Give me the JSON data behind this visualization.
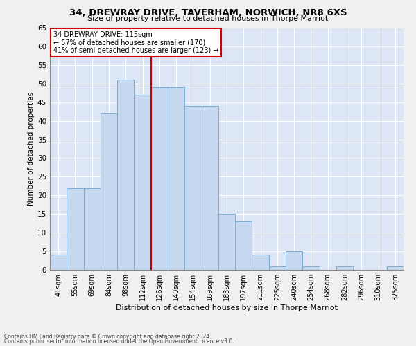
{
  "title": "34, DREWRAY DRIVE, TAVERHAM, NORWICH, NR8 6XS",
  "subtitle": "Size of property relative to detached houses in Thorpe Marriot",
  "xlabel": "Distribution of detached houses by size in Thorpe Marriot",
  "ylabel": "Number of detached properties",
  "footnote1": "Contains HM Land Registry data © Crown copyright and database right 2024.",
  "footnote2": "Contains public sector information licensed under the Open Government Licence v3.0.",
  "categories": [
    "41sqm",
    "55sqm",
    "69sqm",
    "84sqm",
    "98sqm",
    "112sqm",
    "126sqm",
    "140sqm",
    "154sqm",
    "169sqm",
    "183sqm",
    "197sqm",
    "211sqm",
    "225sqm",
    "240sqm",
    "254sqm",
    "268sqm",
    "282sqm",
    "296sqm",
    "310sqm",
    "325sqm"
  ],
  "values": [
    4,
    22,
    22,
    42,
    51,
    47,
    49,
    49,
    44,
    44,
    15,
    13,
    4,
    1,
    5,
    1,
    0,
    1,
    0,
    0,
    1
  ],
  "bar_color": "#c5d8ef",
  "bar_edge_color": "#7aadd4",
  "property_label": "34 DREWRAY DRIVE: 115sqm",
  "annotation_line1": "← 57% of detached houses are smaller (170)",
  "annotation_line2": "41% of semi-detached houses are larger (123) →",
  "vline_color": "#cc0000",
  "vline_position": 6.0,
  "annotation_box_color": "#ffffff",
  "annotation_box_edge": "#cc0000",
  "ylim": [
    0,
    65
  ],
  "yticks": [
    0,
    5,
    10,
    15,
    20,
    25,
    30,
    35,
    40,
    45,
    50,
    55,
    60,
    65
  ],
  "background_color": "#dce6f5",
  "grid_color": "#ffffff",
  "fig_bg": "#f0f0f0"
}
